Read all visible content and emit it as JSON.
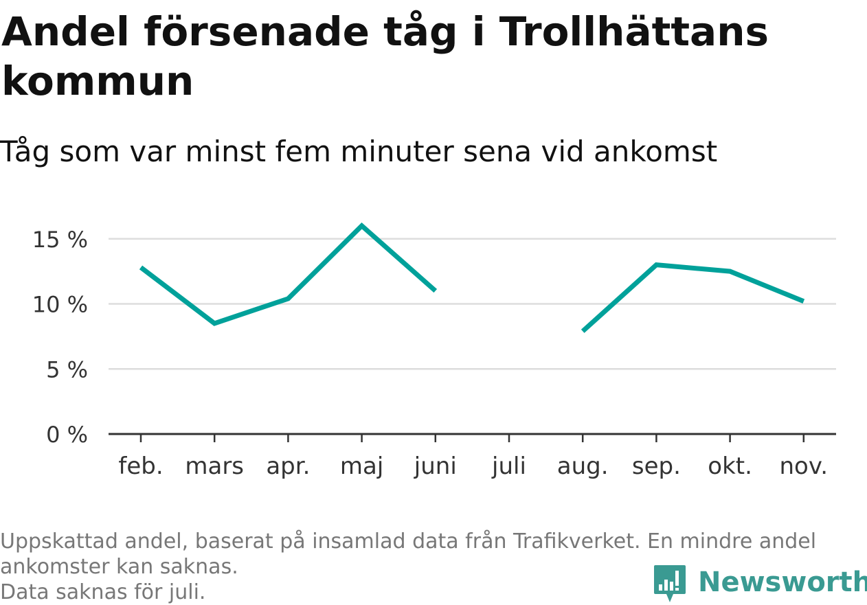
{
  "title": "Andel försenade tåg i Trollhättans kommun",
  "subtitle": "Tåg som var minst fem minuter sena vid ankomst",
  "footnote": {
    "line1": "Uppskattad andel, baserat på insamlad data från Trafikverket. En mindre andel",
    "line2": "ankomster kan saknas.",
    "line3": "Data saknas för juli."
  },
  "brand": {
    "name": "Newsworthy",
    "icon": "bar-chart-speech-bubble-icon"
  },
  "colors": {
    "series": "#00a19a",
    "grid": "#dddddd",
    "axis": "#333333",
    "tick_text": "#333333",
    "brand": "#3a9a92"
  },
  "chart_data": {
    "type": "line",
    "categories": [
      "feb.",
      "mars",
      "apr.",
      "maj",
      "juni",
      "juli",
      "aug.",
      "sep.",
      "okt.",
      "nov."
    ],
    "series": [
      {
        "values": [
          12.8,
          8.5,
          10.4,
          16.0,
          11.0,
          null,
          7.9,
          13.0,
          12.5,
          10.2
        ]
      }
    ],
    "yticks": [
      0,
      5,
      10,
      15
    ],
    "ytick_labels": [
      "0 %",
      "5 %",
      "10 %",
      "15 %"
    ],
    "ylim": [
      0,
      16.5
    ],
    "grid": true,
    "xlabel": "",
    "ylabel": ""
  }
}
